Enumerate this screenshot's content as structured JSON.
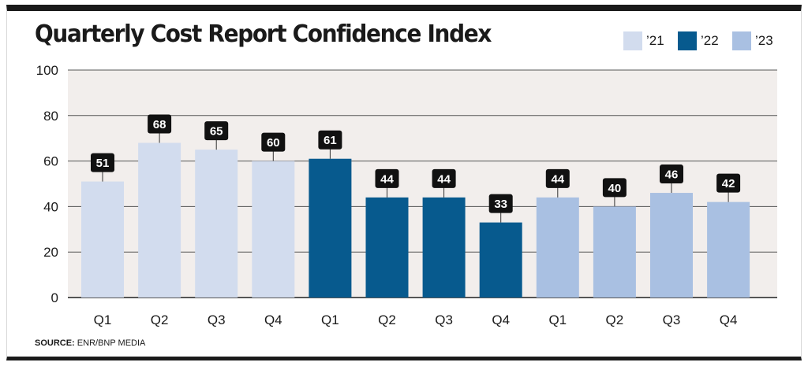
{
  "title": "Quarterly Cost Report Confidence Index",
  "source": {
    "label": "SOURCE:",
    "text": "ENR/BNP MEDIA"
  },
  "legend": [
    {
      "name": "’21",
      "color": "#d2dcee"
    },
    {
      "name": "’22",
      "color": "#075a8e"
    },
    {
      "name": "’23",
      "color": "#a9c0e2"
    }
  ],
  "colors": {
    "plot_background": "#f2eeec",
    "gridline": "#555555",
    "label_box": "#111111"
  },
  "chart_data": {
    "type": "bar",
    "title": "Quarterly Cost Report Confidence Index",
    "xlabel": "",
    "ylabel": "",
    "ylim": [
      0,
      100
    ],
    "yticks": [
      0,
      20,
      40,
      60,
      80,
      100
    ],
    "grid": true,
    "legend_position": "top-right",
    "categories": [
      "Q1",
      "Q2",
      "Q3",
      "Q4",
      "Q1",
      "Q2",
      "Q3",
      "Q4",
      "Q1",
      "Q2",
      "Q3",
      "Q4"
    ],
    "values": [
      51,
      68,
      65,
      60,
      61,
      44,
      44,
      33,
      44,
      40,
      46,
      42
    ],
    "series_index": [
      0,
      0,
      0,
      0,
      1,
      1,
      1,
      1,
      2,
      2,
      2,
      2
    ],
    "data_labels": [
      "51",
      "68",
      "65",
      "60",
      "61",
      "44",
      "44",
      "33",
      "44",
      "40",
      "46",
      "42"
    ]
  }
}
